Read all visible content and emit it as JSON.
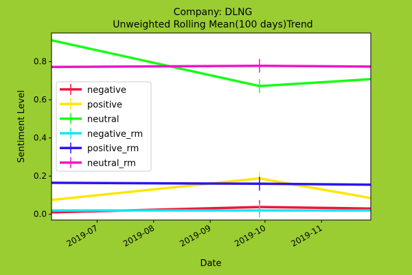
{
  "figure": {
    "background": "#9acd32",
    "plot_background": "#ffffff"
  },
  "chart_data": {
    "type": "line",
    "title_line1": "Company: DLNG",
    "title_line2": "Unweighted Rolling Mean(100 days)Trend",
    "xlabel": "Date",
    "ylabel": "Sentiment Level",
    "x_range": [
      "2019-06-06",
      "2019-11-28"
    ],
    "ylim": [
      -0.03,
      0.95
    ],
    "x_ticks": [
      "2019-07",
      "2019-08",
      "2019-09",
      "2019-10",
      "2019-11"
    ],
    "y_ticks": [
      "0.0",
      "0.2",
      "0.4",
      "0.6",
      "0.8"
    ],
    "y_tick_values": [
      0.0,
      0.2,
      0.4,
      0.6,
      0.8
    ],
    "grid": false,
    "legend_position": "center-left",
    "x": [
      "2019-06-06",
      "2019-09-28",
      "2019-11-28"
    ],
    "series": [
      {
        "name": "negative",
        "color": "#f0143c",
        "values": [
          0.01,
          0.038,
          0.03
        ]
      },
      {
        "name": "positive",
        "color": "#ffe600",
        "values": [
          0.075,
          0.188,
          0.085
        ]
      },
      {
        "name": "neutral",
        "color": "#14ff14",
        "values": [
          0.912,
          0.672,
          0.708
        ]
      },
      {
        "name": "negative_rm",
        "color": "#14e6f0",
        "values": [
          0.02,
          0.02,
          0.02
        ]
      },
      {
        "name": "positive_rm",
        "color": "#2c14f0",
        "values": [
          0.165,
          0.16,
          0.155
        ]
      },
      {
        "name": "neutral_rm",
        "color": "#f014c8",
        "values": [
          0.772,
          0.778,
          0.774
        ]
      }
    ],
    "marker_x": "2019-09-28"
  }
}
